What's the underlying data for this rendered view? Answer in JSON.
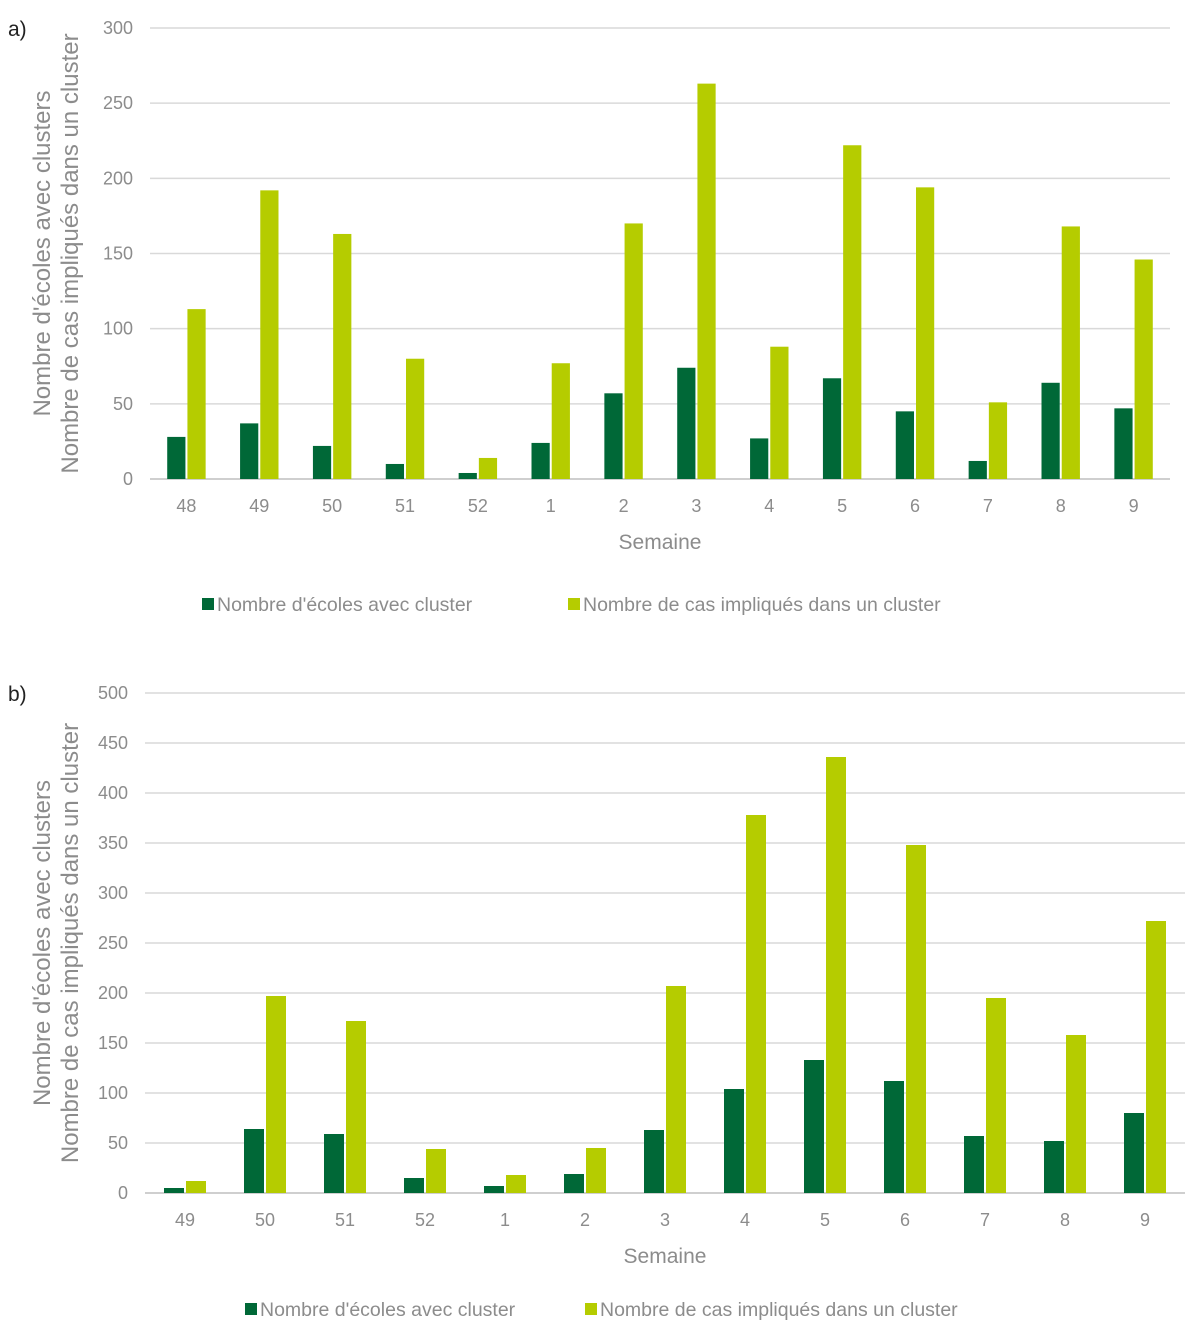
{
  "chart_data": [
    {
      "type": "bar",
      "panel_label": "a)",
      "xlabel": "Semaine",
      "ylabel_lines": [
        "Nombre d'écoles avec clusters",
        "Nombre de cas impliqués dans un cluster"
      ],
      "ylim": [
        0,
        300
      ],
      "yticks": [
        0,
        50,
        100,
        150,
        200,
        250,
        300
      ],
      "categories": [
        "48",
        "49",
        "50",
        "51",
        "52",
        "1",
        "2",
        "3",
        "4",
        "5",
        "6",
        "7",
        "8",
        "9"
      ],
      "series": [
        {
          "name": "Nombre d'écoles avec cluster",
          "color": "#006837",
          "values": [
            28,
            37,
            22,
            10,
            4,
            24,
            57,
            74,
            27,
            67,
            45,
            12,
            64,
            47
          ]
        },
        {
          "name": "Nombre de cas impliqués dans un cluster",
          "color": "#b5cc00",
          "values": [
            113,
            192,
            163,
            80,
            14,
            77,
            170,
            263,
            88,
            222,
            194,
            51,
            168,
            146
          ]
        }
      ],
      "grid": true,
      "legend": "bottom"
    },
    {
      "type": "bar",
      "panel_label": "b)",
      "xlabel": "Semaine",
      "ylabel_lines": [
        "Nombre d'écoles avec clusters",
        "Nombre de cas impliqués dans un cluster"
      ],
      "ylim": [
        0,
        500
      ],
      "yticks": [
        0,
        50,
        100,
        150,
        200,
        250,
        300,
        350,
        400,
        450,
        500
      ],
      "categories": [
        "49",
        "50",
        "51",
        "52",
        "1",
        "2",
        "3",
        "4",
        "5",
        "6",
        "7",
        "8",
        "9"
      ],
      "series": [
        {
          "name": "Nombre d'écoles avec cluster",
          "color": "#006837",
          "values": [
            5,
            64,
            59,
            15,
            7,
            19,
            63,
            104,
            133,
            112,
            57,
            52,
            80
          ]
        },
        {
          "name": "Nombre de cas impliqués dans un cluster",
          "color": "#b5cc00",
          "values": [
            12,
            197,
            172,
            44,
            18,
            45,
            207,
            378,
            436,
            348,
            195,
            158,
            272
          ]
        }
      ],
      "grid": true,
      "legend": "bottom"
    }
  ]
}
